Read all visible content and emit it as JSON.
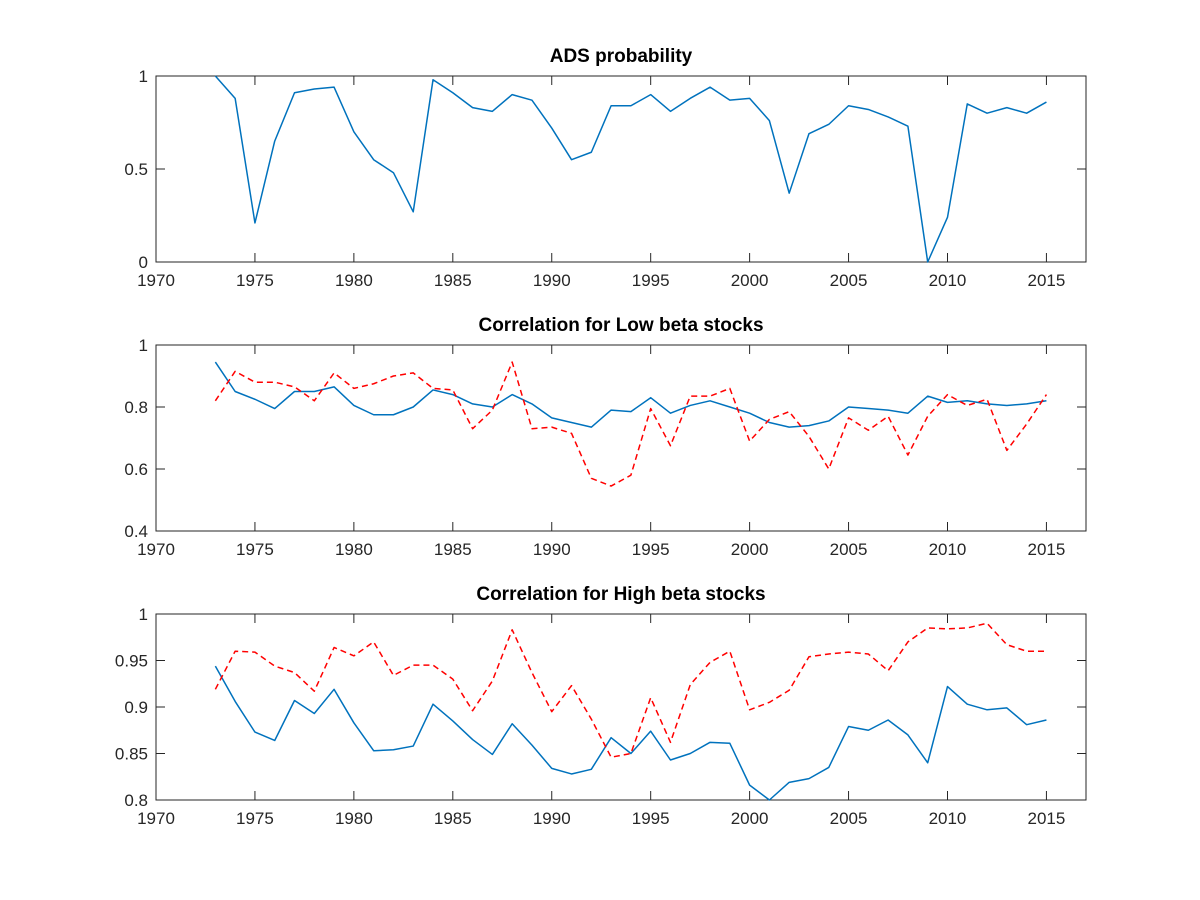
{
  "colors": {
    "solid_series": "#0072BD",
    "dashed_series": "#FF0000",
    "axes": "#262626"
  },
  "chart_data": [
    {
      "type": "line",
      "title": "ADS probability",
      "xlim": [
        1970,
        2017
      ],
      "ylim": [
        0,
        1
      ],
      "x_ticks": [
        1970,
        1975,
        1980,
        1985,
        1990,
        1995,
        2000,
        2005,
        2010,
        2015
      ],
      "y_ticks": [
        0,
        0.5,
        1
      ],
      "y_tick_labels": [
        "0",
        "0.5",
        "1"
      ],
      "grid": false,
      "x": [
        1973,
        1974,
        1975,
        1976,
        1977,
        1978,
        1979,
        1980,
        1981,
        1982,
        1983,
        1984,
        1985,
        1986,
        1987,
        1988,
        1989,
        1990,
        1991,
        1992,
        1993,
        1994,
        1995,
        1996,
        1997,
        1998,
        1999,
        2000,
        2001,
        2002,
        2003,
        2004,
        2005,
        2006,
        2007,
        2008,
        2009,
        2010,
        2011,
        2012,
        2013,
        2014,
        2015
      ],
      "series": [
        {
          "style": "solid",
          "values": [
            1.0,
            0.88,
            0.21,
            0.65,
            0.91,
            0.93,
            0.94,
            0.7,
            0.55,
            0.48,
            0.27,
            0.98,
            0.91,
            0.83,
            0.81,
            0.9,
            0.87,
            0.72,
            0.55,
            0.59,
            0.84,
            0.84,
            0.9,
            0.81,
            0.88,
            0.94,
            0.87,
            0.88,
            0.76,
            0.37,
            0.69,
            0.74,
            0.84,
            0.82,
            0.78,
            0.73,
            0.0,
            0.24,
            0.85,
            0.8,
            0.83,
            0.8,
            0.86
          ]
        }
      ]
    },
    {
      "type": "line",
      "title": "Correlation for Low beta stocks",
      "xlim": [
        1970,
        2017
      ],
      "ylim": [
        0.4,
        1
      ],
      "x_ticks": [
        1970,
        1975,
        1980,
        1985,
        1990,
        1995,
        2000,
        2005,
        2010,
        2015
      ],
      "y_ticks": [
        0.4,
        0.6,
        0.8,
        1
      ],
      "y_tick_labels": [
        "0.4",
        "0.6",
        "0.8",
        "1"
      ],
      "grid": false,
      "x": [
        1973,
        1974,
        1975,
        1976,
        1977,
        1978,
        1979,
        1980,
        1981,
        1982,
        1983,
        1984,
        1985,
        1986,
        1987,
        1988,
        1989,
        1990,
        1991,
        1992,
        1993,
        1994,
        1995,
        1996,
        1997,
        1998,
        1999,
        2000,
        2001,
        2002,
        2003,
        2004,
        2005,
        2006,
        2007,
        2008,
        2009,
        2010,
        2011,
        2012,
        2013,
        2014,
        2015
      ],
      "series": [
        {
          "style": "solid",
          "values": [
            0.945,
            0.85,
            0.825,
            0.795,
            0.85,
            0.85,
            0.865,
            0.805,
            0.775,
            0.775,
            0.8,
            0.855,
            0.84,
            0.81,
            0.8,
            0.84,
            0.81,
            0.765,
            0.75,
            0.735,
            0.79,
            0.785,
            0.83,
            0.78,
            0.805,
            0.82,
            0.8,
            0.78,
            0.75,
            0.735,
            0.74,
            0.755,
            0.8,
            0.795,
            0.79,
            0.78,
            0.835,
            0.815,
            0.82,
            0.81,
            0.805,
            0.81,
            0.82
          ]
        },
        {
          "style": "dashed",
          "values": [
            0.82,
            0.915,
            0.88,
            0.88,
            0.865,
            0.82,
            0.91,
            0.86,
            0.875,
            0.9,
            0.91,
            0.86,
            0.855,
            0.73,
            0.79,
            0.945,
            0.73,
            0.735,
            0.715,
            0.57,
            0.545,
            0.58,
            0.795,
            0.675,
            0.835,
            0.835,
            0.86,
            0.69,
            0.76,
            0.785,
            0.705,
            0.6,
            0.765,
            0.725,
            0.77,
            0.645,
            0.77,
            0.84,
            0.805,
            0.825,
            0.66,
            0.745,
            0.84
          ]
        }
      ]
    },
    {
      "type": "line",
      "title": "Correlation for High beta stocks",
      "xlim": [
        1970,
        2017
      ],
      "ylim": [
        0.8,
        1
      ],
      "x_ticks": [
        1970,
        1975,
        1980,
        1985,
        1990,
        1995,
        2000,
        2005,
        2010,
        2015
      ],
      "y_ticks": [
        0.8,
        0.85,
        0.9,
        0.95,
        1
      ],
      "y_tick_labels": [
        "0.8",
        "0.85",
        "0.9",
        "0.95",
        "1"
      ],
      "grid": false,
      "x": [
        1973,
        1974,
        1975,
        1976,
        1977,
        1978,
        1979,
        1980,
        1981,
        1982,
        1983,
        1984,
        1985,
        1986,
        1987,
        1988,
        1989,
        1990,
        1991,
        1992,
        1993,
        1994,
        1995,
        1996,
        1997,
        1998,
        1999,
        2000,
        2001,
        2002,
        2003,
        2004,
        2005,
        2006,
        2007,
        2008,
        2009,
        2010,
        2011,
        2012,
        2013,
        2014,
        2015
      ],
      "series": [
        {
          "style": "solid",
          "values": [
            0.944,
            0.906,
            0.873,
            0.864,
            0.907,
            0.893,
            0.919,
            0.883,
            0.853,
            0.854,
            0.858,
            0.903,
            0.885,
            0.865,
            0.849,
            0.882,
            0.859,
            0.834,
            0.828,
            0.833,
            0.867,
            0.85,
            0.874,
            0.843,
            0.85,
            0.862,
            0.861,
            0.816,
            0.8,
            0.819,
            0.823,
            0.835,
            0.879,
            0.875,
            0.886,
            0.87,
            0.84,
            0.922,
            0.903,
            0.897,
            0.899,
            0.881,
            0.886
          ]
        },
        {
          "style": "dashed",
          "values": [
            0.919,
            0.96,
            0.959,
            0.944,
            0.937,
            0.917,
            0.964,
            0.955,
            0.97,
            0.934,
            0.945,
            0.945,
            0.93,
            0.896,
            0.928,
            0.983,
            0.937,
            0.895,
            0.923,
            0.887,
            0.846,
            0.85,
            0.91,
            0.862,
            0.924,
            0.948,
            0.96,
            0.897,
            0.905,
            0.918,
            0.954,
            0.957,
            0.959,
            0.957,
            0.939,
            0.97,
            0.985,
            0.984,
            0.985,
            0.99,
            0.967,
            0.96,
            0.96
          ]
        }
      ]
    }
  ]
}
